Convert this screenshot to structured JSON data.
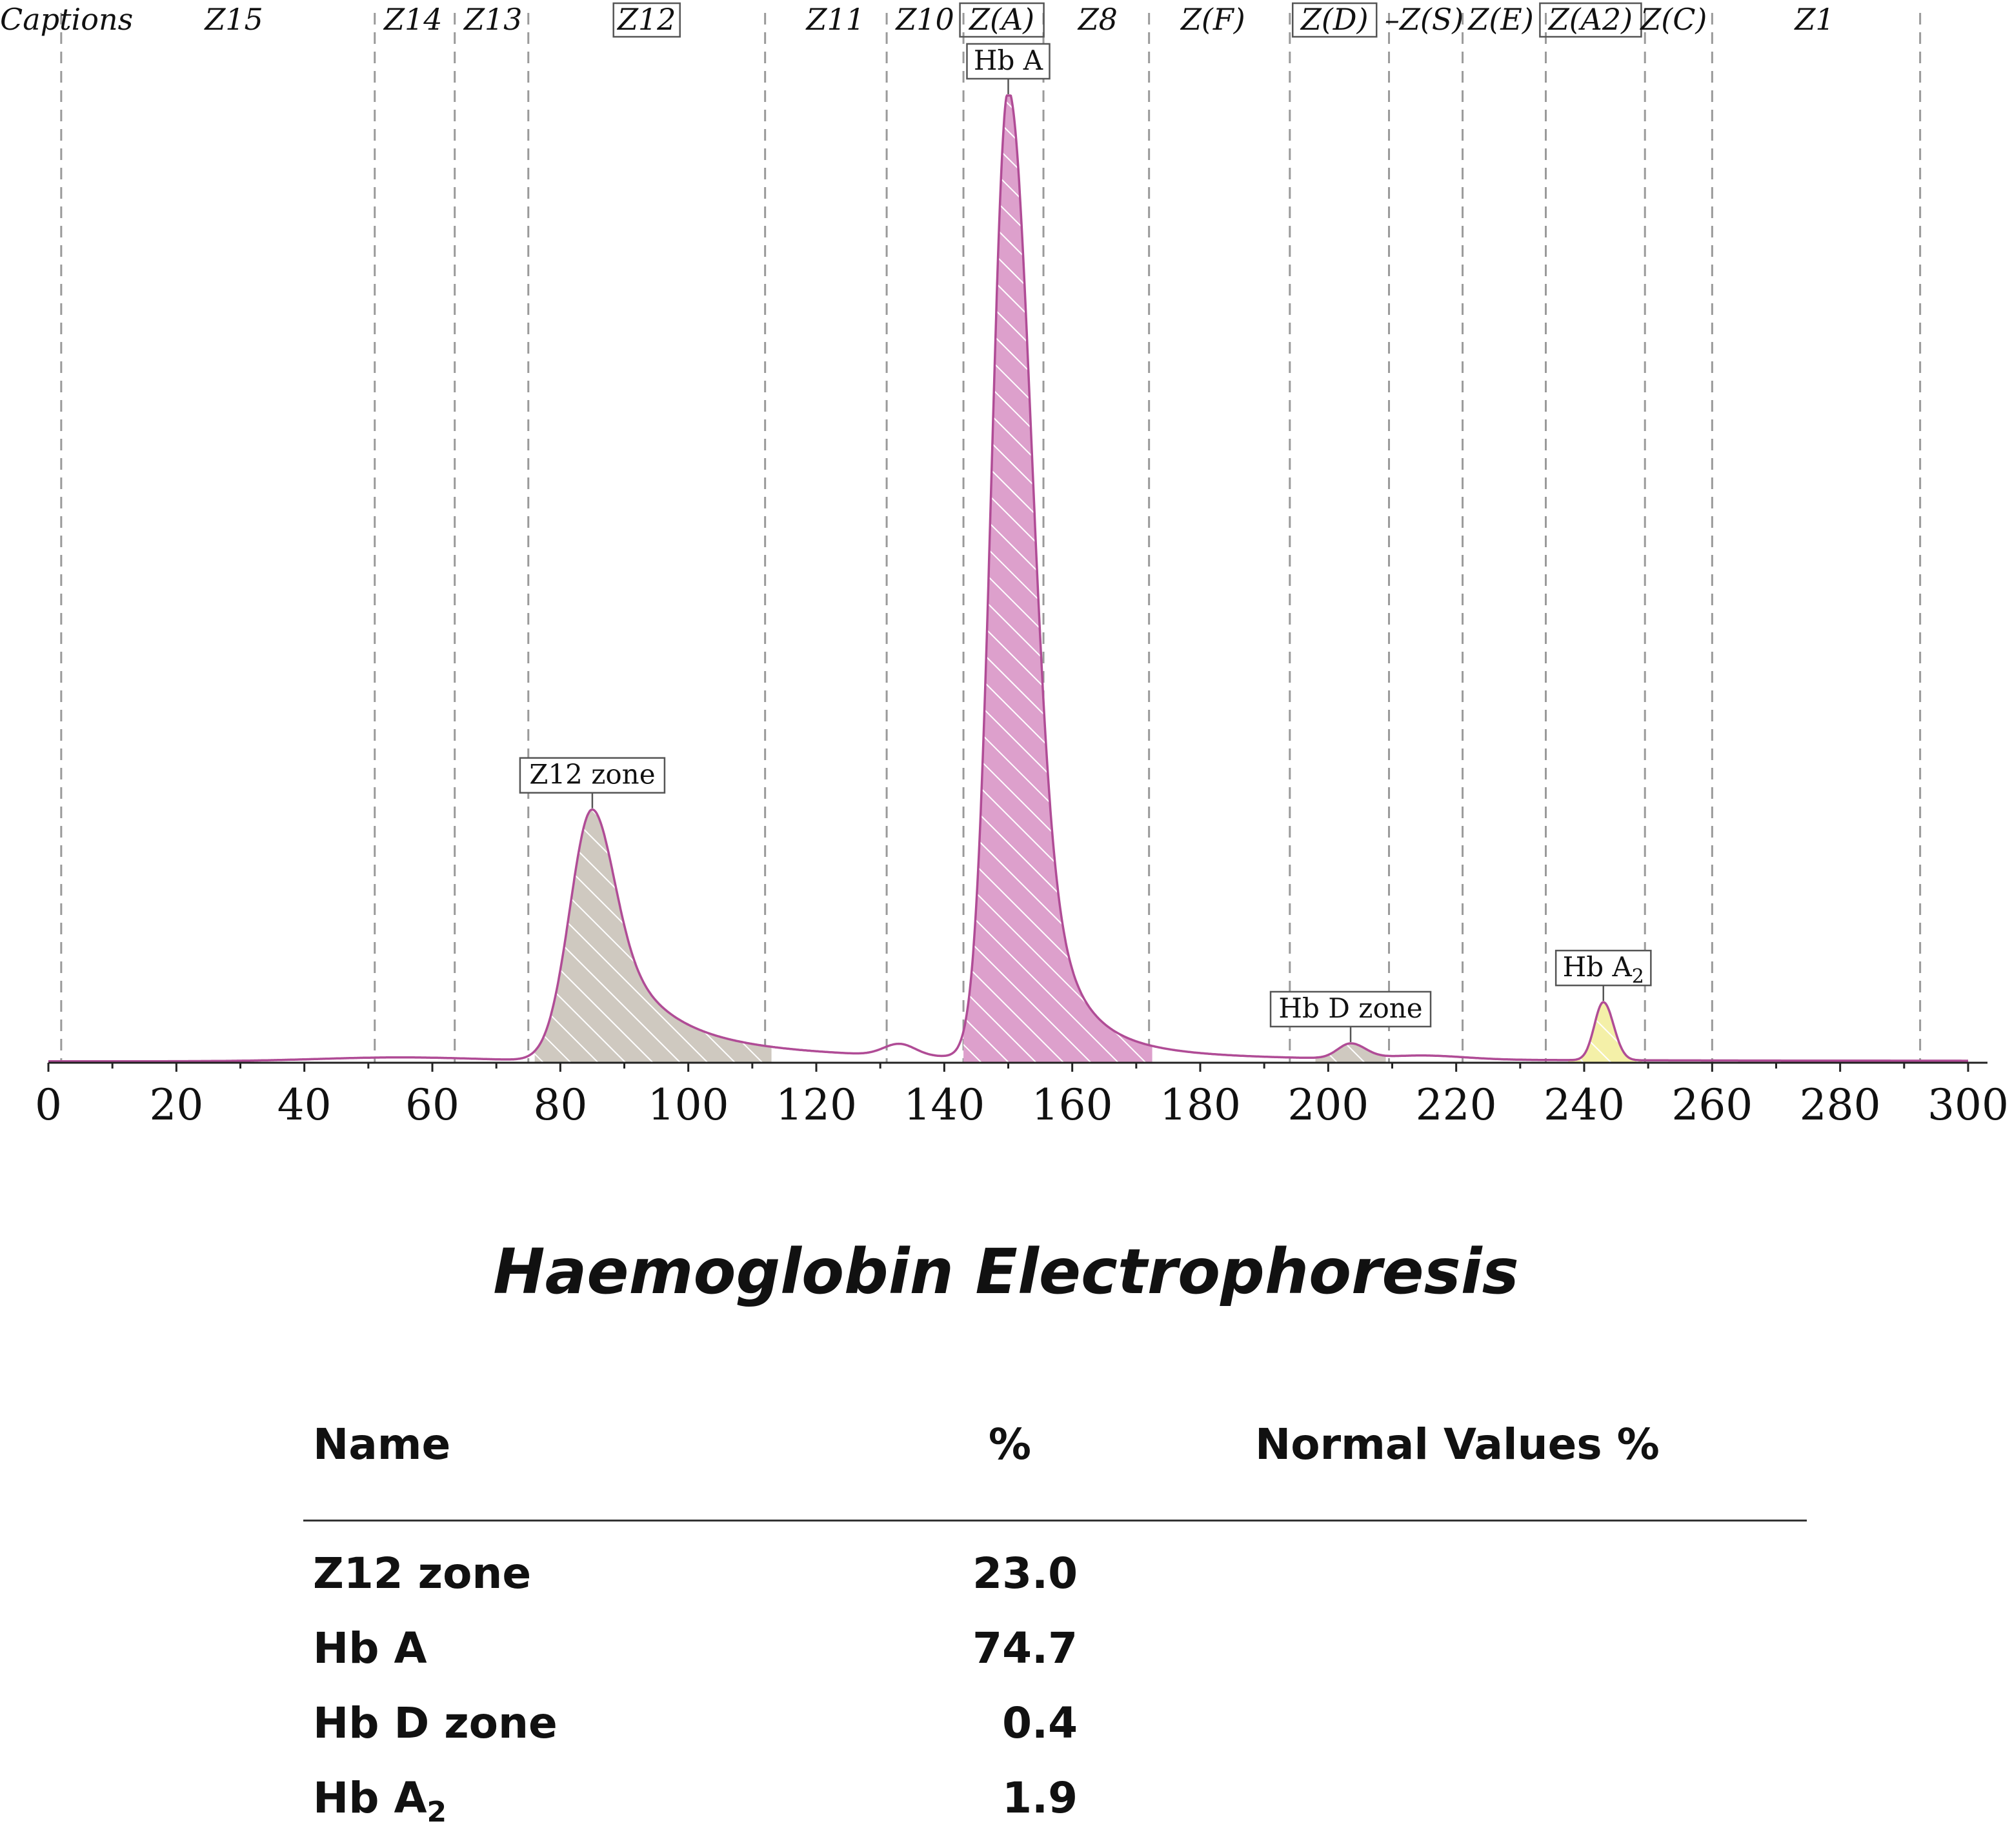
{
  "chart_data": {
    "type": "area",
    "title": "Haemoglobin Electrophoresis",
    "xlim": [
      0,
      300
    ],
    "x_ticks": [
      0,
      20,
      40,
      60,
      80,
      100,
      120,
      140,
      160,
      180,
      200,
      220,
      240,
      260,
      280,
      300
    ],
    "captions_label": "Captions",
    "zones": [
      {
        "label": "Z15",
        "center": 29,
        "boxed": false
      },
      {
        "label": "Z14",
        "center": 57,
        "boxed": false
      },
      {
        "label": "Z13",
        "center": 69.5,
        "boxed": false
      },
      {
        "label": "Z12",
        "center": 93.5,
        "boxed": true
      },
      {
        "label": "Z11",
        "center": 123,
        "boxed": false
      },
      {
        "label": "Z10",
        "center": 137,
        "boxed": false
      },
      {
        "label": "Z(A)",
        "center": 149,
        "boxed": true
      },
      {
        "label": "Z8",
        "center": 164,
        "boxed": false
      },
      {
        "label": "Z(F)",
        "center": 182,
        "boxed": false
      },
      {
        "label": "Z(D)",
        "center": 201,
        "boxed": true
      },
      {
        "label": "–Z(S)",
        "center": 215,
        "boxed": false
      },
      {
        "label": "Z(E)",
        "center": 227,
        "boxed": false
      },
      {
        "label": "Z(A2)",
        "center": 241,
        "boxed": true
      },
      {
        "label": "Z(C)",
        "center": 254,
        "boxed": false
      },
      {
        "label": "Z1",
        "center": 276,
        "boxed": false
      }
    ],
    "zone_boundaries": [
      2,
      51,
      63.5,
      75,
      112,
      131,
      143,
      155.5,
      172,
      194,
      209.5,
      221,
      234,
      249.5,
      260,
      292.5
    ],
    "peaks": [
      {
        "name": "Z12 zone",
        "position": 85,
        "relative_height": 0.26,
        "percent": 23.0,
        "color": "#cfc9c0",
        "sub": ""
      },
      {
        "name": "Hb A",
        "position": 150,
        "relative_height": 1.0,
        "percent": 74.7,
        "color": "#dda0cc",
        "sub": ""
      },
      {
        "name": "Hb D zone",
        "position": 203.5,
        "relative_height": 0.015,
        "percent": 0.4,
        "color": "#cfc9c0",
        "sub": ""
      },
      {
        "name": "Hb A",
        "position": 243,
        "relative_height": 0.06,
        "percent": 1.9,
        "color": "#f4f0a8",
        "sub": "2"
      }
    ]
  },
  "results": {
    "headers": {
      "name": "Name",
      "percent": "%",
      "normal": "Normal Values %"
    },
    "rows": [
      {
        "name": "Z12 zone",
        "sub": "",
        "percent": "23.0",
        "normal": ""
      },
      {
        "name": "Hb A",
        "sub": "",
        "percent": "74.7",
        "normal": ""
      },
      {
        "name": "Hb D zone",
        "sub": "",
        "percent": "0.4",
        "normal": ""
      },
      {
        "name": "Hb A",
        "sub": "2",
        "percent": "1.9",
        "normal": ""
      }
    ]
  },
  "colors": {
    "curve": "#b04c96",
    "baseline": "#222222"
  }
}
